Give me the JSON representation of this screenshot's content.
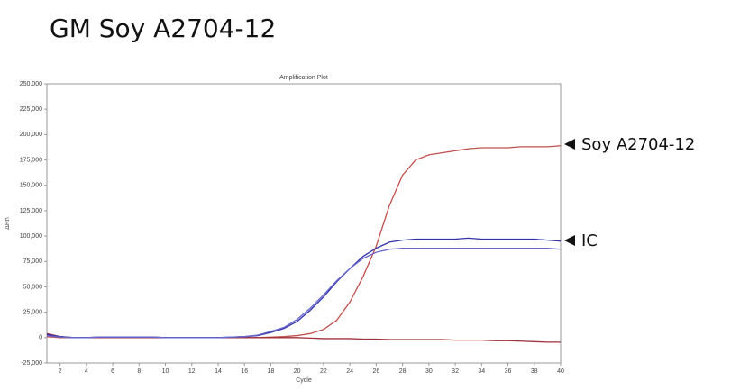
{
  "chart_data": {
    "type": "line",
    "page_title": "GM Soy A2704-12",
    "title": "Amplification Plot",
    "x_label": "Cycle",
    "y_label": "ΔRn",
    "annotations": [
      "Soy A2704-12",
      "IC"
    ],
    "x": [
      1,
      2,
      3,
      4,
      5,
      6,
      7,
      8,
      9,
      10,
      11,
      12,
      13,
      14,
      15,
      16,
      17,
      18,
      19,
      20,
      21,
      22,
      23,
      24,
      25,
      26,
      27,
      28,
      29,
      30,
      31,
      32,
      33,
      34,
      35,
      36,
      37,
      38,
      39,
      40
    ],
    "xlim": [
      1,
      40
    ],
    "xticks": [
      2,
      4,
      6,
      8,
      10,
      12,
      14,
      16,
      18,
      20,
      22,
      24,
      26,
      28,
      30,
      32,
      34,
      36,
      38,
      40
    ],
    "ylim": [
      -25000,
      250000
    ],
    "yticks": [
      {
        "value": -25000,
        "label": "-25,000"
      },
      0,
      {
        "value": 25000,
        "label": "25,000"
      },
      {
        "value": 50000,
        "label": "50,000"
      },
      {
        "value": 75000,
        "label": "75,000"
      },
      {
        "value": 100000,
        "label": "100,000"
      },
      {
        "value": 125000,
        "label": "125,000"
      },
      {
        "value": 150000,
        "label": "150,000"
      },
      {
        "value": 175000,
        "label": "175,000"
      },
      {
        "value": 200000,
        "label": "200,000"
      },
      {
        "value": 225000,
        "label": "225,000"
      },
      {
        "value": 250000,
        "label": "250,000"
      }
    ],
    "series": [
      {
        "color": "#c0504d",
        "values": [
          1000,
          0,
          0,
          0,
          500,
          500,
          500,
          500,
          500,
          0,
          0,
          0,
          0,
          0,
          0,
          0,
          0,
          500,
          1000,
          2000,
          4000,
          8000,
          17000,
          35000,
          60000,
          90000,
          130000,
          160000,
          175000,
          180000,
          182000,
          184000,
          186000,
          187000,
          187000,
          187000,
          188000,
          188000,
          188000,
          189000
        ]
      },
      {
        "color": "#a0303a",
        "values": [
          4000,
          1000,
          0,
          0,
          0,
          0,
          0,
          0,
          0,
          0,
          0,
          0,
          0,
          0,
          0,
          0,
          0,
          0,
          0,
          0,
          -500,
          -1000,
          -1000,
          -1000,
          -1500,
          -1500,
          -2000,
          -2000,
          -2000,
          -2000,
          -2000,
          -2500,
          -2500,
          -2500,
          -3000,
          -3000,
          -3500,
          -4000,
          -4500,
          -4500
        ]
      },
      {
        "color": "#3333aa",
        "values": [
          3000,
          1000,
          0,
          0,
          500,
          500,
          500,
          500,
          500,
          0,
          0,
          0,
          0,
          0,
          500,
          1000,
          2000,
          5000,
          9000,
          16000,
          27000,
          40000,
          55000,
          68000,
          80000,
          88000,
          94000,
          96000,
          97000,
          97000,
          97000,
          97000,
          98000,
          97000,
          97000,
          97000,
          97000,
          97000,
          96000,
          95000
        ]
      },
      {
        "color": "#6666cc",
        "values": [
          2000,
          500,
          0,
          0,
          500,
          500,
          500,
          500,
          500,
          0,
          0,
          0,
          0,
          0,
          500,
          1000,
          2500,
          6000,
          10000,
          18000,
          29000,
          42000,
          56000,
          68000,
          78000,
          84000,
          87000,
          88000,
          88000,
          88000,
          88000,
          88000,
          88000,
          88000,
          88000,
          88000,
          88000,
          88000,
          88000,
          87000
        ]
      }
    ]
  }
}
